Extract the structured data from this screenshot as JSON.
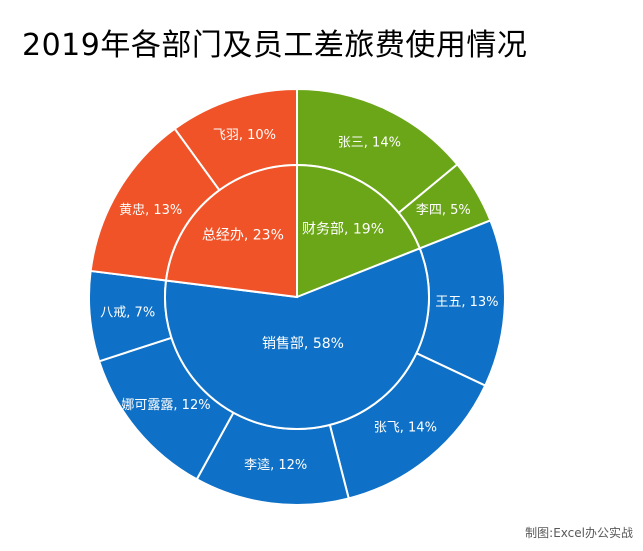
{
  "title": "2019年各部门及员工差旅费使用情况",
  "credit": "制图:Excel办公实战",
  "chart_data": {
    "type": "sunburst",
    "title": "2019年各部门及员工差旅费使用情况",
    "inner": [
      {
        "name": "财务部",
        "label": "财务部, 19%",
        "value": 19,
        "color": "#6AA617"
      },
      {
        "name": "销售部",
        "label": "销售部, 58%",
        "value": 58,
        "color": "#0E70C6"
      },
      {
        "name": "总经办",
        "label": "总经办, 23%",
        "value": 23,
        "color": "#F05327"
      }
    ],
    "outer": [
      {
        "name": "张三",
        "label": "张三, 14%",
        "value": 14,
        "parent": "财务部"
      },
      {
        "name": "李四",
        "label": "李四, 5%",
        "value": 5,
        "parent": "财务部"
      },
      {
        "name": "王五",
        "label": "王五, 13%",
        "value": 13,
        "parent": "销售部"
      },
      {
        "name": "张飞",
        "label": "张飞, 14%",
        "value": 14,
        "parent": "销售部"
      },
      {
        "name": "李逵",
        "label": "李逵, 12%",
        "value": 12,
        "parent": "销售部"
      },
      {
        "name": "娜可露露",
        "label": "娜可露露, 12%",
        "value": 12,
        "parent": "销售部"
      },
      {
        "name": "八戒",
        "label": "八戒, 7%",
        "value": 7,
        "parent": "销售部"
      },
      {
        "name": "黄忠",
        "label": "黄忠, 13%",
        "value": 13,
        "parent": "总经办"
      },
      {
        "name": "飞羽",
        "label": "飞羽, 10%",
        "value": 10,
        "parent": "总经办"
      }
    ]
  }
}
